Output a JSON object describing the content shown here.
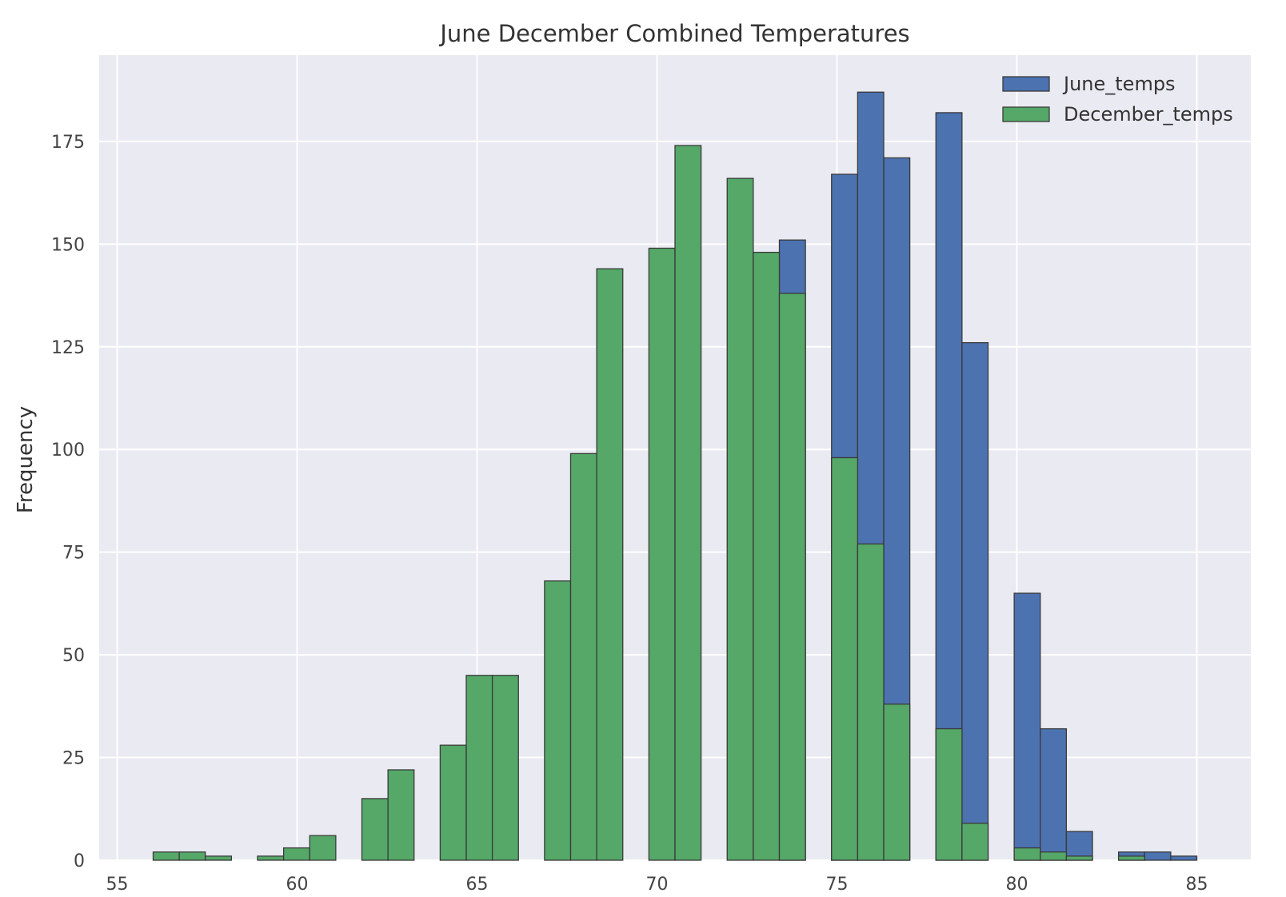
{
  "chart_data": {
    "type": "bar",
    "title": "June December Combined Temperatures",
    "xlabel": "",
    "ylabel": "Frequency",
    "xlim": [
      54.5,
      86.5
    ],
    "ylim": [
      0,
      196
    ],
    "xticks": [
      "55",
      "60",
      "65",
      "70",
      "75",
      "80",
      "85"
    ],
    "yticks": [
      "0",
      "25",
      "50",
      "75",
      "100",
      "125",
      "150",
      "175"
    ],
    "grid": true,
    "legend_position": "top-right",
    "bin_edges": [
      56.0,
      56.725,
      57.45,
      58.175,
      58.9,
      59.625,
      60.35,
      61.075,
      61.8,
      62.525,
      63.25,
      63.975,
      64.7,
      65.425,
      66.15,
      66.875,
      67.6,
      68.325,
      69.05,
      69.775,
      70.5,
      71.225,
      71.95,
      72.675,
      73.4,
      74.125,
      74.85,
      75.575,
      76.3,
      77.025,
      77.75,
      78.475,
      79.2,
      79.925,
      80.65,
      81.375,
      82.1,
      82.825,
      83.55,
      84.275,
      85.0
    ],
    "series": [
      {
        "name": "June_temps",
        "color": "#4c72b0",
        "values": [
          0,
          0,
          0,
          0,
          0,
          0,
          0,
          0,
          0,
          0,
          0,
          0,
          0,
          0,
          0,
          0,
          0,
          0,
          0,
          0,
          0,
          0,
          0,
          0,
          151,
          0,
          167,
          187,
          171,
          0,
          182,
          126,
          0,
          65,
          32,
          7,
          0,
          2,
          2,
          1
        ]
      },
      {
        "name": "December_temps",
        "color": "#55a868",
        "values": [
          2,
          2,
          1,
          0,
          1,
          3,
          6,
          0,
          15,
          22,
          0,
          28,
          45,
          45,
          0,
          68,
          99,
          144,
          0,
          149,
          174,
          0,
          166,
          148,
          138,
          0,
          98,
          77,
          38,
          0,
          32,
          9,
          0,
          3,
          2,
          1,
          0,
          1,
          0,
          0
        ]
      }
    ]
  }
}
